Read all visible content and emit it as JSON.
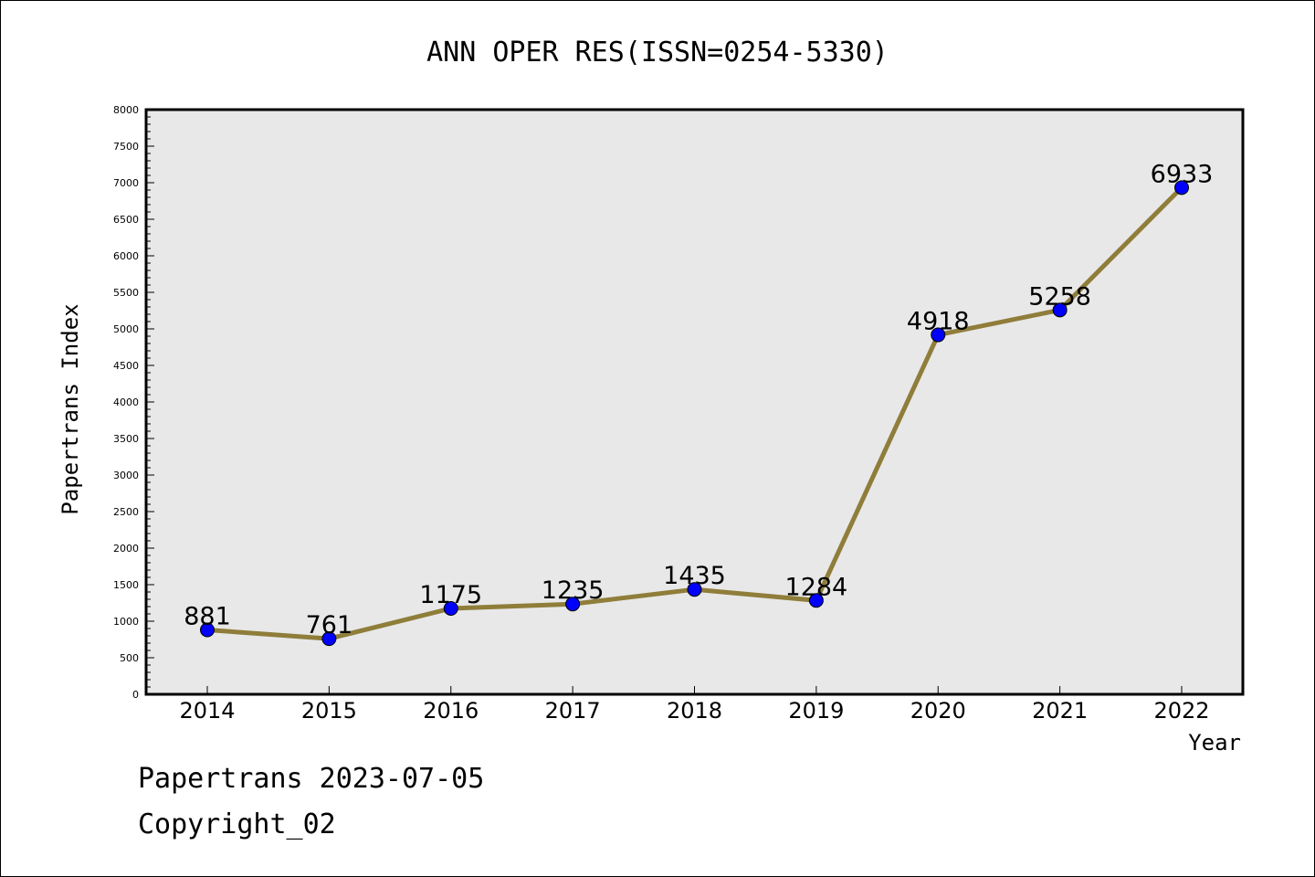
{
  "chart_data": {
    "type": "line",
    "title": "ANN OPER RES(ISSN=0254-5330)",
    "xlabel": "Year",
    "ylabel": "Papertrans Index",
    "categories": [
      "2014",
      "2015",
      "2016",
      "2017",
      "2018",
      "2019",
      "2020",
      "2021",
      "2022"
    ],
    "series": [
      {
        "values": [
          881,
          761,
          1175,
          1235,
          1435,
          1284,
          4918,
          5258,
          6933
        ]
      }
    ],
    "ylim": [
      0,
      8000
    ],
    "yticks": [
      0,
      500,
      1000,
      1500,
      2000,
      2500,
      3000,
      3500,
      4000,
      4500,
      5000,
      5500,
      6000,
      6500,
      7000,
      7500,
      8000
    ],
    "grid": false,
    "line_color": "#8f7d3a",
    "marker_color": "#0000ff",
    "plot_background": "#e8e8e8"
  },
  "footer": {
    "date_line": "Papertrans 2023-07-05",
    "copyright_line": "Copyright_02"
  }
}
